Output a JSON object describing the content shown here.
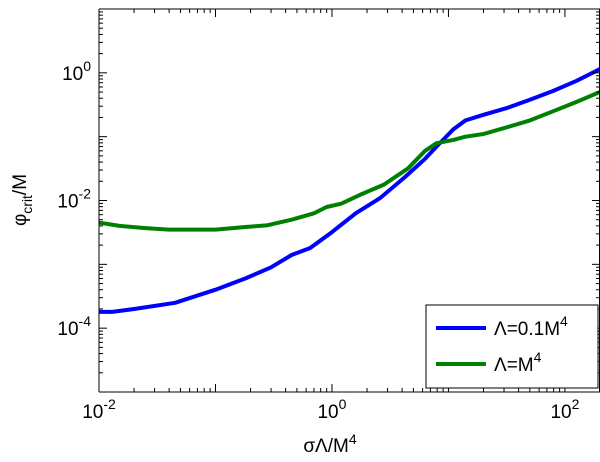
{
  "chart_data": {
    "type": "line",
    "xscale": "log",
    "yscale": "log",
    "xlim": [
      0.01,
      200
    ],
    "ylim": [
      1e-05,
      10
    ],
    "xlabel": {
      "base": "σΛ/M",
      "sup": "4"
    },
    "ylabel": {
      "base": "φ",
      "sub": "crit",
      "tail": "/M"
    },
    "x_ticks": [
      {
        "value": 0.01,
        "base": "10",
        "exp": "-2"
      },
      {
        "value": 1,
        "base": "10",
        "exp": "0"
      },
      {
        "value": 100,
        "base": "10",
        "exp": "2"
      }
    ],
    "y_ticks": [
      {
        "value": 0.0001,
        "base": "10",
        "exp": "-4"
      },
      {
        "value": 0.01,
        "base": "10",
        "exp": "-2"
      },
      {
        "value": 1,
        "base": "10",
        "exp": "0"
      }
    ],
    "legend_position": "bottom-right",
    "series": [
      {
        "name": "Λ=0.1M",
        "name_sup": "4",
        "color": "#0000ff",
        "x": [
          0.01,
          0.013,
          0.02,
          0.045,
          0.1,
          0.18,
          0.3,
          0.45,
          0.65,
          1.0,
          1.6,
          2.6,
          4.2,
          6.3,
          7.9,
          11.0,
          14.0,
          20.0,
          31.6,
          50.0,
          79.0,
          126.0,
          200.0
        ],
        "y": [
          0.00018,
          0.00018,
          0.0002,
          0.00025,
          0.0004,
          0.0006,
          0.0009,
          0.0014,
          0.0018,
          0.0032,
          0.0063,
          0.011,
          0.023,
          0.045,
          0.07,
          0.13,
          0.18,
          0.22,
          0.28,
          0.38,
          0.52,
          0.75,
          1.15
        ]
      },
      {
        "name": "Λ=M",
        "name_sup": "4",
        "color": "#008000",
        "x": [
          0.01,
          0.015,
          0.025,
          0.04,
          0.065,
          0.1,
          0.17,
          0.28,
          0.45,
          0.7,
          0.9,
          1.2,
          1.8,
          2.8,
          4.5,
          6.3,
          7.9,
          11.0,
          14.0,
          20.0,
          31.6,
          50.0,
          79.0,
          126.0,
          200.0
        ],
        "y": [
          0.0045,
          0.004,
          0.0037,
          0.0035,
          0.0035,
          0.0035,
          0.0038,
          0.0041,
          0.005,
          0.0063,
          0.0079,
          0.0089,
          0.0126,
          0.0178,
          0.032,
          0.06,
          0.079,
          0.089,
          0.1,
          0.11,
          0.14,
          0.18,
          0.25,
          0.35,
          0.5
        ]
      }
    ]
  }
}
